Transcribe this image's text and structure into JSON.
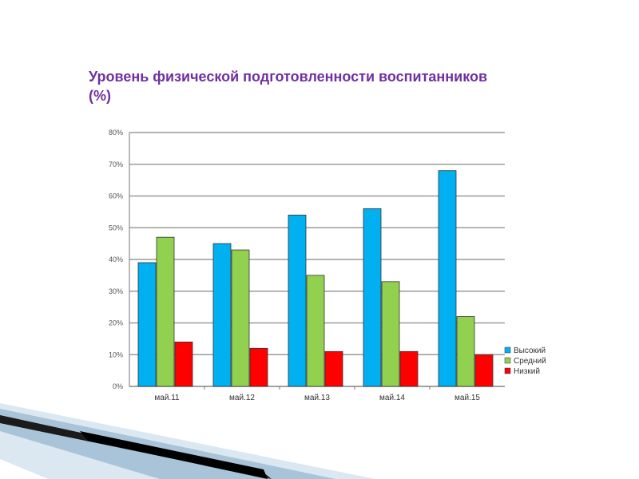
{
  "slide": {
    "title_line1": "Уровень физической подготовленности воспитанников",
    "title_line2": "(%)"
  },
  "chart_data": {
    "type": "bar",
    "categories": [
      "май.11",
      "май.12",
      "май.13",
      "май.14",
      "май.15"
    ],
    "series": [
      {
        "name": "Высокий",
        "color": "#00b0f0",
        "values": [
          39,
          45,
          54,
          56,
          68
        ]
      },
      {
        "name": "Средний",
        "color": "#92d050",
        "values": [
          47,
          43,
          35,
          33,
          22
        ]
      },
      {
        "name": "Низкий",
        "color": "#ff0000",
        "values": [
          14,
          12,
          11,
          11,
          10
        ]
      }
    ],
    "yticks": [
      "0%",
      "10%",
      "20%",
      "30%",
      "40%",
      "50%",
      "60%",
      "70%",
      "80%"
    ],
    "ylim": [
      0,
      80
    ],
    "grid": true,
    "legend_position": "right-bottom"
  }
}
